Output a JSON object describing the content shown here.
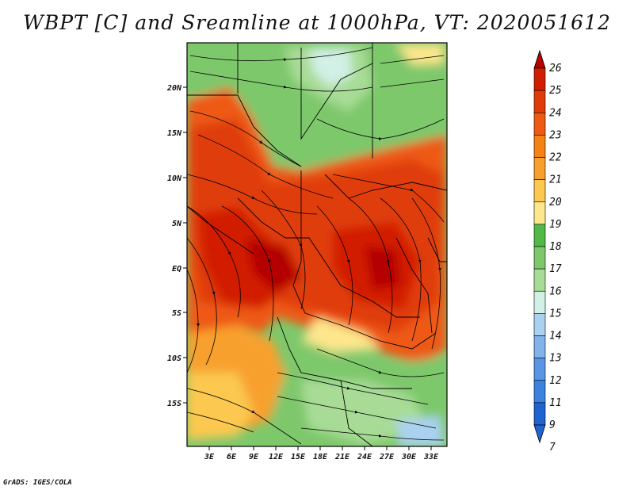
{
  "title": "WBPT [C] and Sreamline at 1000hPa, VT: 2020051612",
  "footer": "GrADS: IGES/COLA",
  "map": {
    "lat_ticks": [
      "20N",
      "15N",
      "10N",
      "5N",
      "EQ",
      "5S",
      "10S",
      "15S"
    ],
    "lon_ticks": [
      "3E",
      "6E",
      "9E",
      "12E",
      "15E",
      "18E",
      "21E",
      "24E",
      "27E",
      "30E",
      "33E"
    ],
    "colorbar": {
      "labels": [
        "26",
        "25",
        "24",
        "23",
        "22",
        "21",
        "20",
        "19",
        "18",
        "17",
        "16",
        "15",
        "14",
        "13",
        "12",
        "11",
        "9",
        "7"
      ],
      "colors": [
        "#b40000",
        "#d21e00",
        "#e03c0a",
        "#ee5a14",
        "#f58214",
        "#f8a02e",
        "#fcc850",
        "#fde68c",
        "#52b848",
        "#7ec86c",
        "#a8dc96",
        "#d2f0e6",
        "#aad2f0",
        "#82b4eb",
        "#5a96e6",
        "#3c82e0",
        "#2064d2",
        "#2064d2"
      ]
    }
  }
}
